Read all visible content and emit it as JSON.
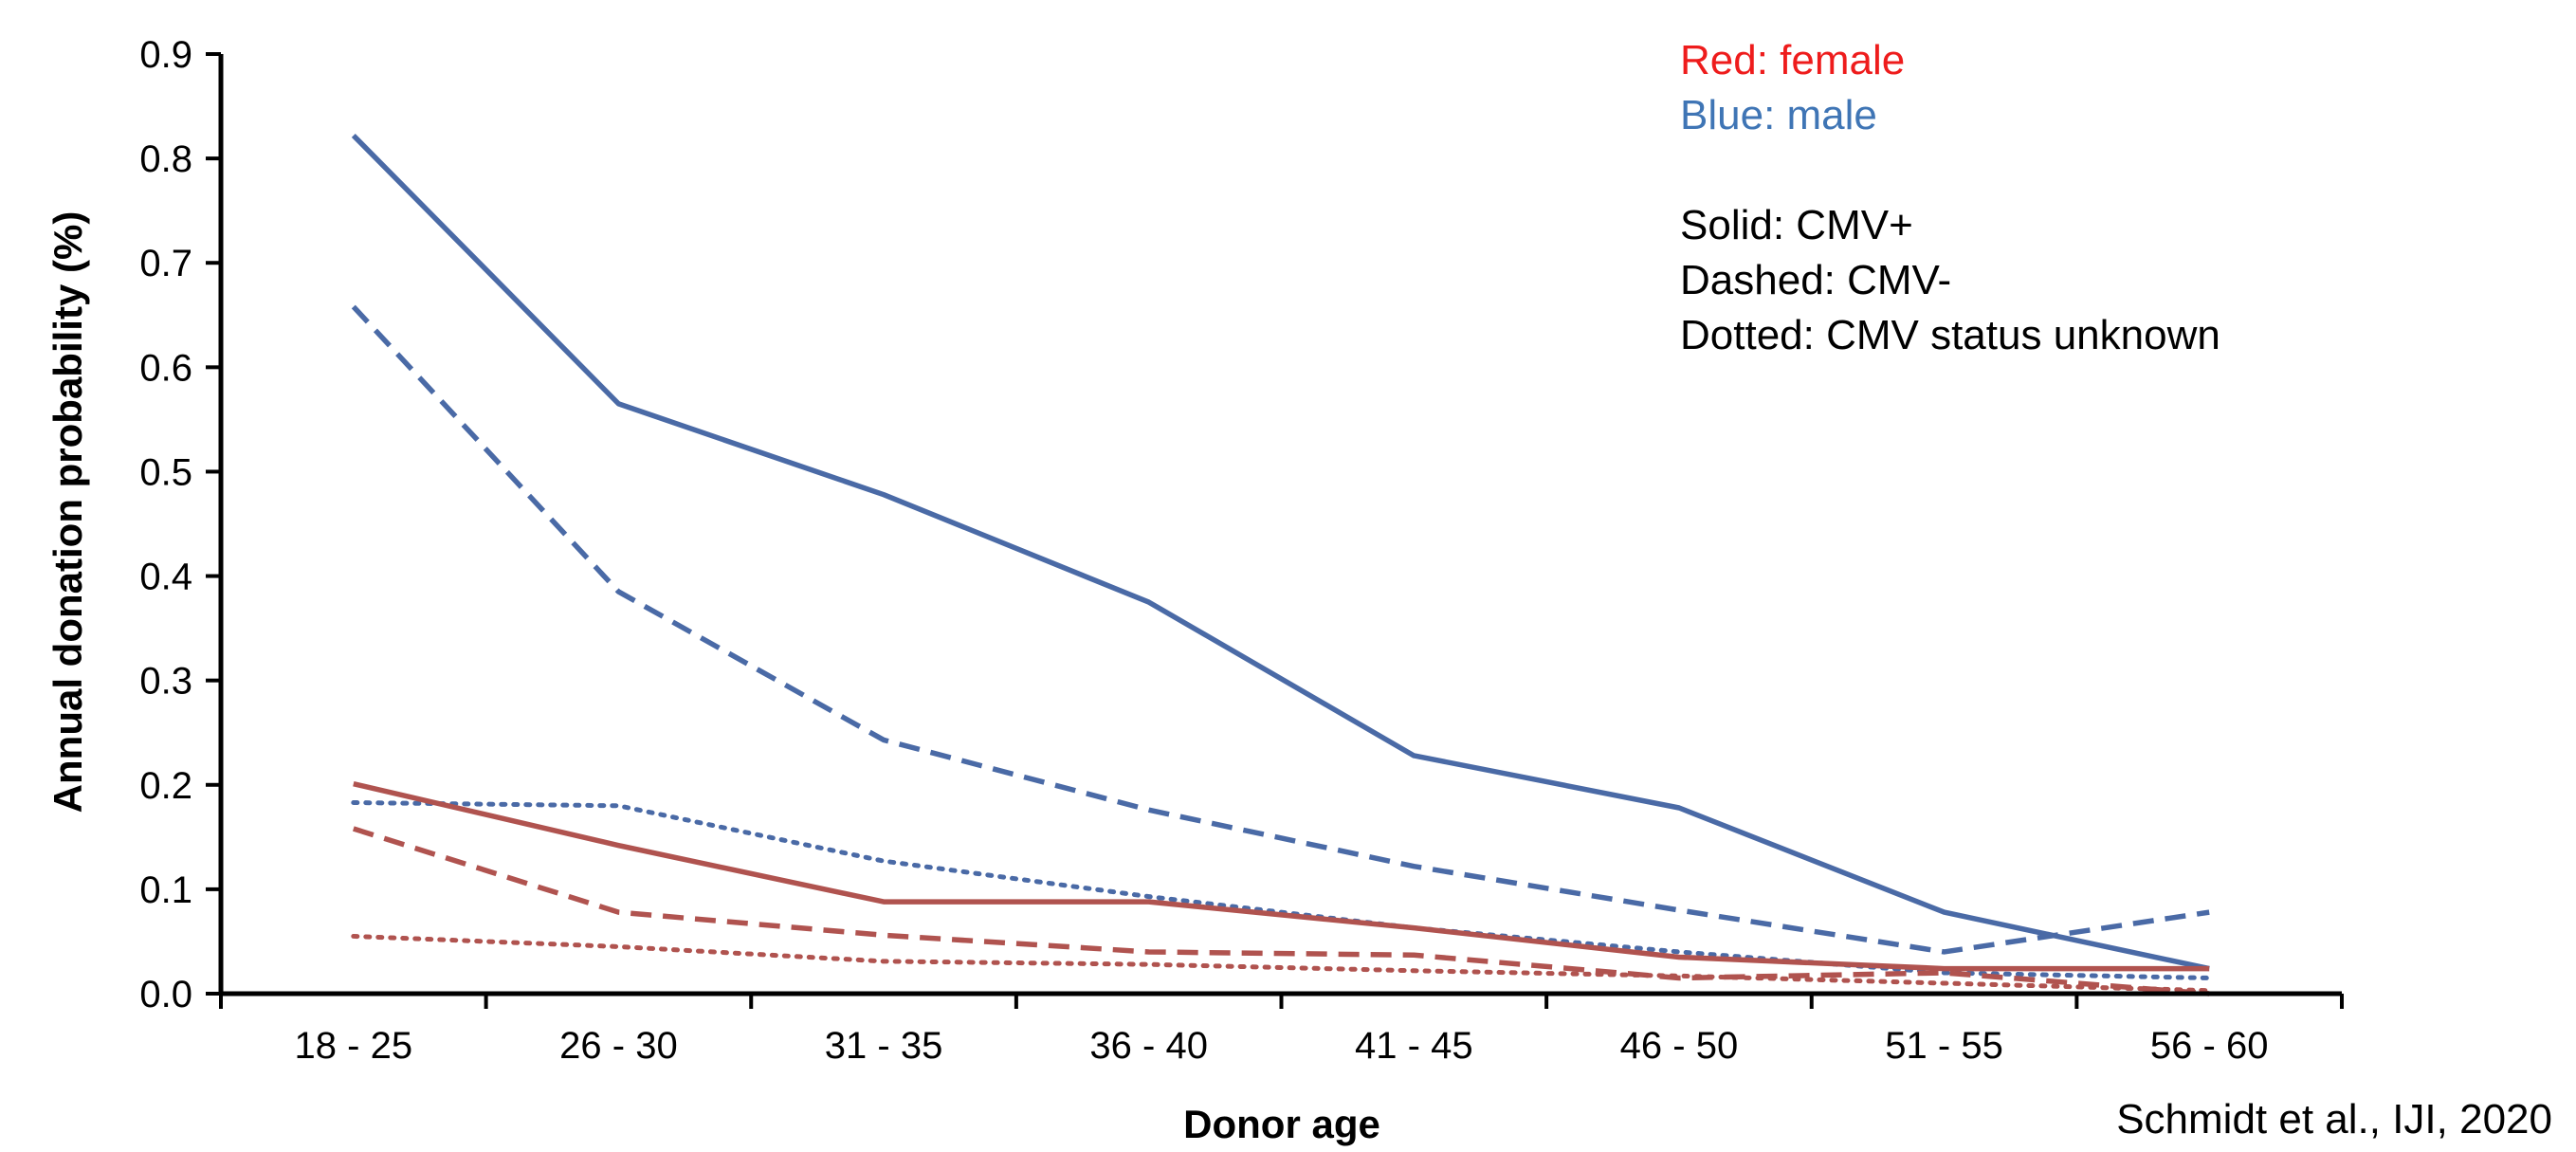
{
  "chart_data": {
    "type": "line",
    "categories": [
      "18 - 25",
      "26 - 30",
      "31 - 35",
      "36 - 40",
      "41 - 45",
      "46 - 50",
      "51 - 55",
      "56 - 60"
    ],
    "xlabel": "Donor age",
    "ylabel": "Annual donation probability (%)",
    "ylim": [
      0,
      0.9
    ],
    "yticks": [
      "0.0",
      "0.1",
      "0.2",
      "0.3",
      "0.4",
      "0.5",
      "0.6",
      "0.7",
      "0.8",
      "0.9"
    ],
    "grid": false,
    "series": [
      {
        "key": "male_cmv_pos",
        "color": "#4a6aa6",
        "style": "solid",
        "values": [
          0.822,
          0.565,
          0.478,
          0.375,
          0.228,
          0.178,
          0.078,
          0.024
        ]
      },
      {
        "key": "male_cmv_neg",
        "color": "#4a6aa6",
        "style": "dashed",
        "values": [
          0.658,
          0.385,
          0.243,
          0.176,
          0.122,
          0.08,
          0.04,
          0.078
        ]
      },
      {
        "key": "male_cmv_unknown",
        "color": "#4a6aa6",
        "style": "dotted",
        "values": [
          0.183,
          0.18,
          0.127,
          0.093,
          0.063,
          0.04,
          0.02,
          0.015
        ]
      },
      {
        "key": "female_cmv_pos",
        "color": "#b0534f",
        "style": "solid",
        "values": [
          0.201,
          0.142,
          0.088,
          0.088,
          0.063,
          0.035,
          0.024,
          0.024
        ]
      },
      {
        "key": "female_cmv_neg",
        "color": "#b0534f",
        "style": "dashed",
        "values": [
          0.158,
          0.078,
          0.056,
          0.04,
          0.037,
          0.015,
          0.02,
          0.0
        ]
      },
      {
        "key": "female_cmv_unknown",
        "color": "#b0534f",
        "style": "dotted",
        "values": [
          0.055,
          0.045,
          0.031,
          0.028,
          0.022,
          0.017,
          0.01,
          0.003
        ]
      }
    ],
    "legend": {
      "position": "top-right",
      "lines": [
        {
          "text": "Red: female",
          "color": "#ee1c1c"
        },
        {
          "text": "Blue: male",
          "color": "#3f75b5"
        },
        {
          "text": "",
          "color": "#000000"
        },
        {
          "text": "Solid: CMV+",
          "color": "#000000"
        },
        {
          "text": "Dashed: CMV-",
          "color": "#000000"
        },
        {
          "text": "Dotted:  CMV status unknown",
          "color": "#000000"
        }
      ]
    },
    "annotation": "Schmidt et al., IJI, 2020"
  }
}
